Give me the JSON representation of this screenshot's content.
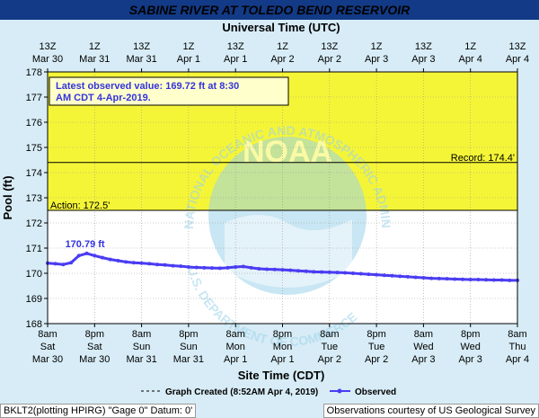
{
  "title": "SABINE RIVER AT TOLEDO BEND RESERVOIR",
  "colors": {
    "title_bg": "#123a86",
    "title_text": "#ffffff",
    "frame_bg": "#d7ecf6",
    "flood_fill": "#f5f538",
    "observed": "#4a3cf2",
    "annotation_text": "#3333dd",
    "grid": "#9a9a9a",
    "watermark": "#9cd3ea"
  },
  "top_axis": {
    "label": "Universal Time (UTC)",
    "ticks": [
      {
        "hour": "13Z",
        "date": "Mar 30"
      },
      {
        "hour": "1Z",
        "date": "Mar 31"
      },
      {
        "hour": "13Z",
        "date": "Mar 31"
      },
      {
        "hour": "1Z",
        "date": "Apr 1"
      },
      {
        "hour": "13Z",
        "date": "Apr 1"
      },
      {
        "hour": "1Z",
        "date": "Apr 2"
      },
      {
        "hour": "13Z",
        "date": "Apr 2"
      },
      {
        "hour": "1Z",
        "date": "Apr 3"
      },
      {
        "hour": "13Z",
        "date": "Apr 3"
      },
      {
        "hour": "1Z",
        "date": "Apr 4"
      },
      {
        "hour": "13Z",
        "date": "Apr 4"
      }
    ]
  },
  "bottom_axis": {
    "label": "Site Time (CDT)",
    "ticks": [
      {
        "time": "8am",
        "day": "Sat",
        "date": "Mar 30"
      },
      {
        "time": "8pm",
        "day": "Sat",
        "date": "Mar 30"
      },
      {
        "time": "8am",
        "day": "Sun",
        "date": "Mar 31"
      },
      {
        "time": "8pm",
        "day": "Sun",
        "date": "Mar 31"
      },
      {
        "time": "8am",
        "day": "Mon",
        "date": "Apr 1"
      },
      {
        "time": "8pm",
        "day": "Mon",
        "date": "Apr 1"
      },
      {
        "time": "8am",
        "day": "Tue",
        "date": "Apr 2"
      },
      {
        "time": "8pm",
        "day": "Tue",
        "date": "Apr 2"
      },
      {
        "time": "8am",
        "day": "Wed",
        "date": "Apr 3"
      },
      {
        "time": "8pm",
        "day": "Wed",
        "date": "Apr 3"
      },
      {
        "time": "8am",
        "day": "Thu",
        "date": "Apr 4"
      }
    ]
  },
  "y_axis": {
    "label": "Pool (ft)",
    "ticks": [
      168,
      169,
      170,
      171,
      172,
      173,
      174,
      175,
      176,
      177,
      178
    ]
  },
  "thresholds": {
    "action": {
      "value": 172.5,
      "label": "Action: 172.5'"
    },
    "record": {
      "value": 174.4,
      "label": "Record: 174.4'"
    }
  },
  "annotations": {
    "latest_box": "Latest observed value: 169.72 ft at 8:30 AM CDT 4-Apr-2019.",
    "peak_label": "170.79 ft"
  },
  "legend": {
    "created": "Graph Created (8:52AM Apr 4, 2019)",
    "observed": "Observed"
  },
  "footer": {
    "left": "BKLT2(plotting HPIRG) \"Gage 0\" Datum: 0'",
    "right": "Observations courtesy of US Geological Survey"
  },
  "watermark": {
    "logo_text": "NOAA",
    "ring_text": "NATIONAL OCEANIC AND ATMOSPHERIC ADMINISTRATION",
    "lower_text": "U.S. DEPARTMENT OF COMMERCE"
  },
  "chart_data": {
    "type": "line",
    "title": "SABINE RIVER AT TOLEDO BEND RESERVOIR",
    "xlabel": "Site Time (CDT)",
    "ylabel": "Pool (ft)",
    "x_units": "hours after 8am Sat Mar 30 (CDT)",
    "xlim": [
      0,
      120
    ],
    "ylim": [
      168,
      178
    ],
    "grid": true,
    "legend_position": "bottom",
    "series": [
      {
        "name": "Observed",
        "x": [
          0,
          2,
          4,
          6,
          8,
          10,
          12,
          14,
          16,
          18,
          20,
          22,
          24,
          26,
          28,
          30,
          32,
          34,
          36,
          38,
          40,
          42,
          44,
          46,
          48,
          50,
          52,
          54,
          56,
          58,
          60,
          62,
          64,
          66,
          68,
          70,
          72,
          74,
          76,
          78,
          80,
          82,
          84,
          86,
          88,
          90,
          92,
          94,
          96,
          98,
          100,
          102,
          104,
          106,
          108,
          110,
          112,
          114,
          116,
          118,
          120
        ],
        "y": [
          170.4,
          170.38,
          170.35,
          170.42,
          170.7,
          170.79,
          170.7,
          170.62,
          170.55,
          170.5,
          170.45,
          170.42,
          170.4,
          170.38,
          170.35,
          170.33,
          170.3,
          170.28,
          170.25,
          170.23,
          170.22,
          170.21,
          170.2,
          170.22,
          170.25,
          170.27,
          170.22,
          170.18,
          170.16,
          170.15,
          170.14,
          170.12,
          170.1,
          170.08,
          170.06,
          170.05,
          170.04,
          170.03,
          170.02,
          170.0,
          169.98,
          169.96,
          169.94,
          169.92,
          169.9,
          169.88,
          169.86,
          169.84,
          169.82,
          169.8,
          169.79,
          169.78,
          169.77,
          169.76,
          169.75,
          169.75,
          169.74,
          169.73,
          169.73,
          169.72,
          169.72
        ]
      }
    ],
    "peak": {
      "x": 10,
      "y": 170.79,
      "label": "170.79 ft"
    },
    "thresholds": [
      {
        "name": "Action",
        "value": 172.5
      },
      {
        "name": "Record",
        "value": 174.4
      }
    ],
    "flood_fill_from": 172.5
  }
}
